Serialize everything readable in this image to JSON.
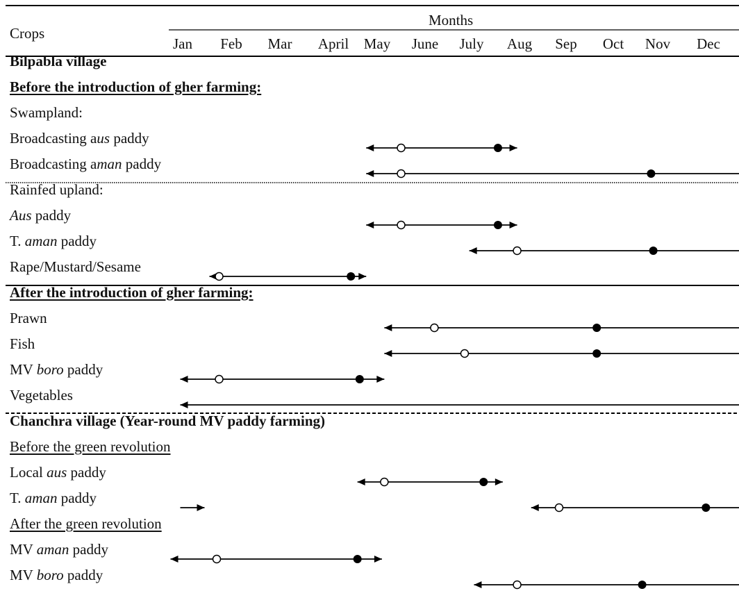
{
  "header": {
    "crops_label": "Crops",
    "months_label": "Months",
    "months": [
      "Jan",
      "Feb",
      "Mar",
      "April",
      "May",
      "June",
      "July",
      "Aug",
      "Sep",
      "Oct",
      "Nov",
      "Dec"
    ]
  },
  "rows": [
    {
      "segments": [
        {
          "text": "Bilpabla village"
        }
      ],
      "style": "bold"
    },
    {
      "segments": [
        {
          "text": "Before the introduction of gher farming:"
        }
      ],
      "style": "bold-underline"
    },
    {
      "segments": [
        {
          "text": "Swampland:"
        }
      ]
    },
    {
      "segments": [
        {
          "text": "Broadcasting a"
        },
        {
          "text": "us",
          "italic": true
        },
        {
          "text": "  paddy"
        }
      ],
      "timeline": {
        "start": 4.75,
        "end": 7.95,
        "open": 5.5,
        "filled": 7.55,
        "arrow_left": true,
        "arrow_right": true
      }
    },
    {
      "segments": [
        {
          "text": "Broadcasting a"
        },
        {
          "text": "man",
          "italic": true
        },
        {
          "text": " paddy"
        }
      ],
      "timeline": {
        "start": 4.75,
        "end": 12.95,
        "open": 5.5,
        "filled": 10.85,
        "arrow_left": true,
        "arrow_right": true
      }
    },
    {
      "segments": [
        {
          "text": "Rainfed upland:"
        }
      ]
    },
    {
      "segments": [
        {
          "text": "Aus",
          "italic": true
        },
        {
          "text": "  paddy"
        }
      ],
      "timeline": {
        "start": 4.75,
        "end": 7.95,
        "open": 5.5,
        "filled": 7.55,
        "arrow_left": true,
        "arrow_right": true
      }
    },
    {
      "segments": [
        {
          "text": "T. "
        },
        {
          "text": "aman",
          "italic": true
        },
        {
          "text": "  paddy"
        }
      ],
      "timeline": {
        "start": 6.95,
        "end": 12.95,
        "open": 7.95,
        "filled": 10.9,
        "arrow_left": true,
        "arrow_right": true
      }
    },
    {
      "segments": [
        {
          "text": "Rape/Mustard/Sesame"
        }
      ],
      "timeline": {
        "start": 1.55,
        "end": 4.75,
        "open": 1.75,
        "filled": 4.4,
        "arrow_left": true,
        "arrow_right": true
      }
    },
    {
      "segments": [
        {
          "text": "After the introduction of gher farming:"
        }
      ],
      "style": "bold-underline"
    },
    {
      "segments": [
        {
          "text": "Prawn"
        }
      ],
      "timeline": {
        "start": 5.15,
        "end": 12.95,
        "open": 6.2,
        "filled": 9.65,
        "arrow_left": true,
        "arrow_right": true
      }
    },
    {
      "segments": [
        {
          "text": "Fish"
        }
      ],
      "timeline": {
        "start": 5.15,
        "end": 12.95,
        "open": 6.85,
        "filled": 9.65,
        "arrow_left": true,
        "arrow_right": true
      }
    },
    {
      "segments": [
        {
          "text": "MV "
        },
        {
          "text": "boro",
          "italic": true
        },
        {
          "text": "  paddy"
        }
      ],
      "timeline": {
        "start": 0.95,
        "end": 5.15,
        "open": 1.75,
        "filled": 4.6,
        "arrow_left": true,
        "arrow_right": true
      }
    },
    {
      "segments": [
        {
          "text": "Vegetables"
        }
      ],
      "timeline": {
        "start": 0.95,
        "end": 12.95,
        "arrow_left": true,
        "arrow_right": true
      }
    },
    {
      "segments": [
        {
          "text": "Chanchra village (Year-round MV paddy farming)"
        }
      ],
      "style": "bold"
    },
    {
      "segments": [
        {
          "text": "Before the green revolution"
        }
      ],
      "style": "underline"
    },
    {
      "segments": [
        {
          "text": "Local "
        },
        {
          "text": "aus",
          "italic": true
        },
        {
          "text": "  paddy"
        }
      ],
      "timeline": {
        "start": 4.55,
        "end": 7.65,
        "open": 5.15,
        "filled": 7.25,
        "arrow_left": true,
        "arrow_right": true
      }
    },
    {
      "segments": [
        {
          "text": "T. "
        },
        {
          "text": "aman",
          "italic": true
        },
        {
          "text": "  paddy"
        }
      ],
      "timeline": {
        "start": 8.25,
        "end": 12.95,
        "open": 8.85,
        "filled": 11.95,
        "arrow_left": true,
        "arrow_right": false
      },
      "extra_arrow": {
        "start": 0.95,
        "end": 1.45
      }
    },
    {
      "segments": [
        {
          "text": "After the green revolution"
        }
      ],
      "style": "underline"
    },
    {
      "segments": [
        {
          "text": "MV "
        },
        {
          "text": "aman",
          "italic": true
        },
        {
          "text": "  paddy"
        }
      ],
      "timeline": {
        "start": 0.75,
        "end": 5.1,
        "open": 1.7,
        "filled": 4.55,
        "arrow_left": true,
        "arrow_right": true
      }
    },
    {
      "segments": [
        {
          "text": "MV "
        },
        {
          "text": "boro",
          "italic": true
        },
        {
          "text": "  paddy"
        }
      ],
      "timeline": {
        "start": 7.05,
        "end": 12.95,
        "open": 7.95,
        "filled": 10.65,
        "arrow_left": true,
        "arrow_right": true
      }
    }
  ],
  "legend": {}
}
